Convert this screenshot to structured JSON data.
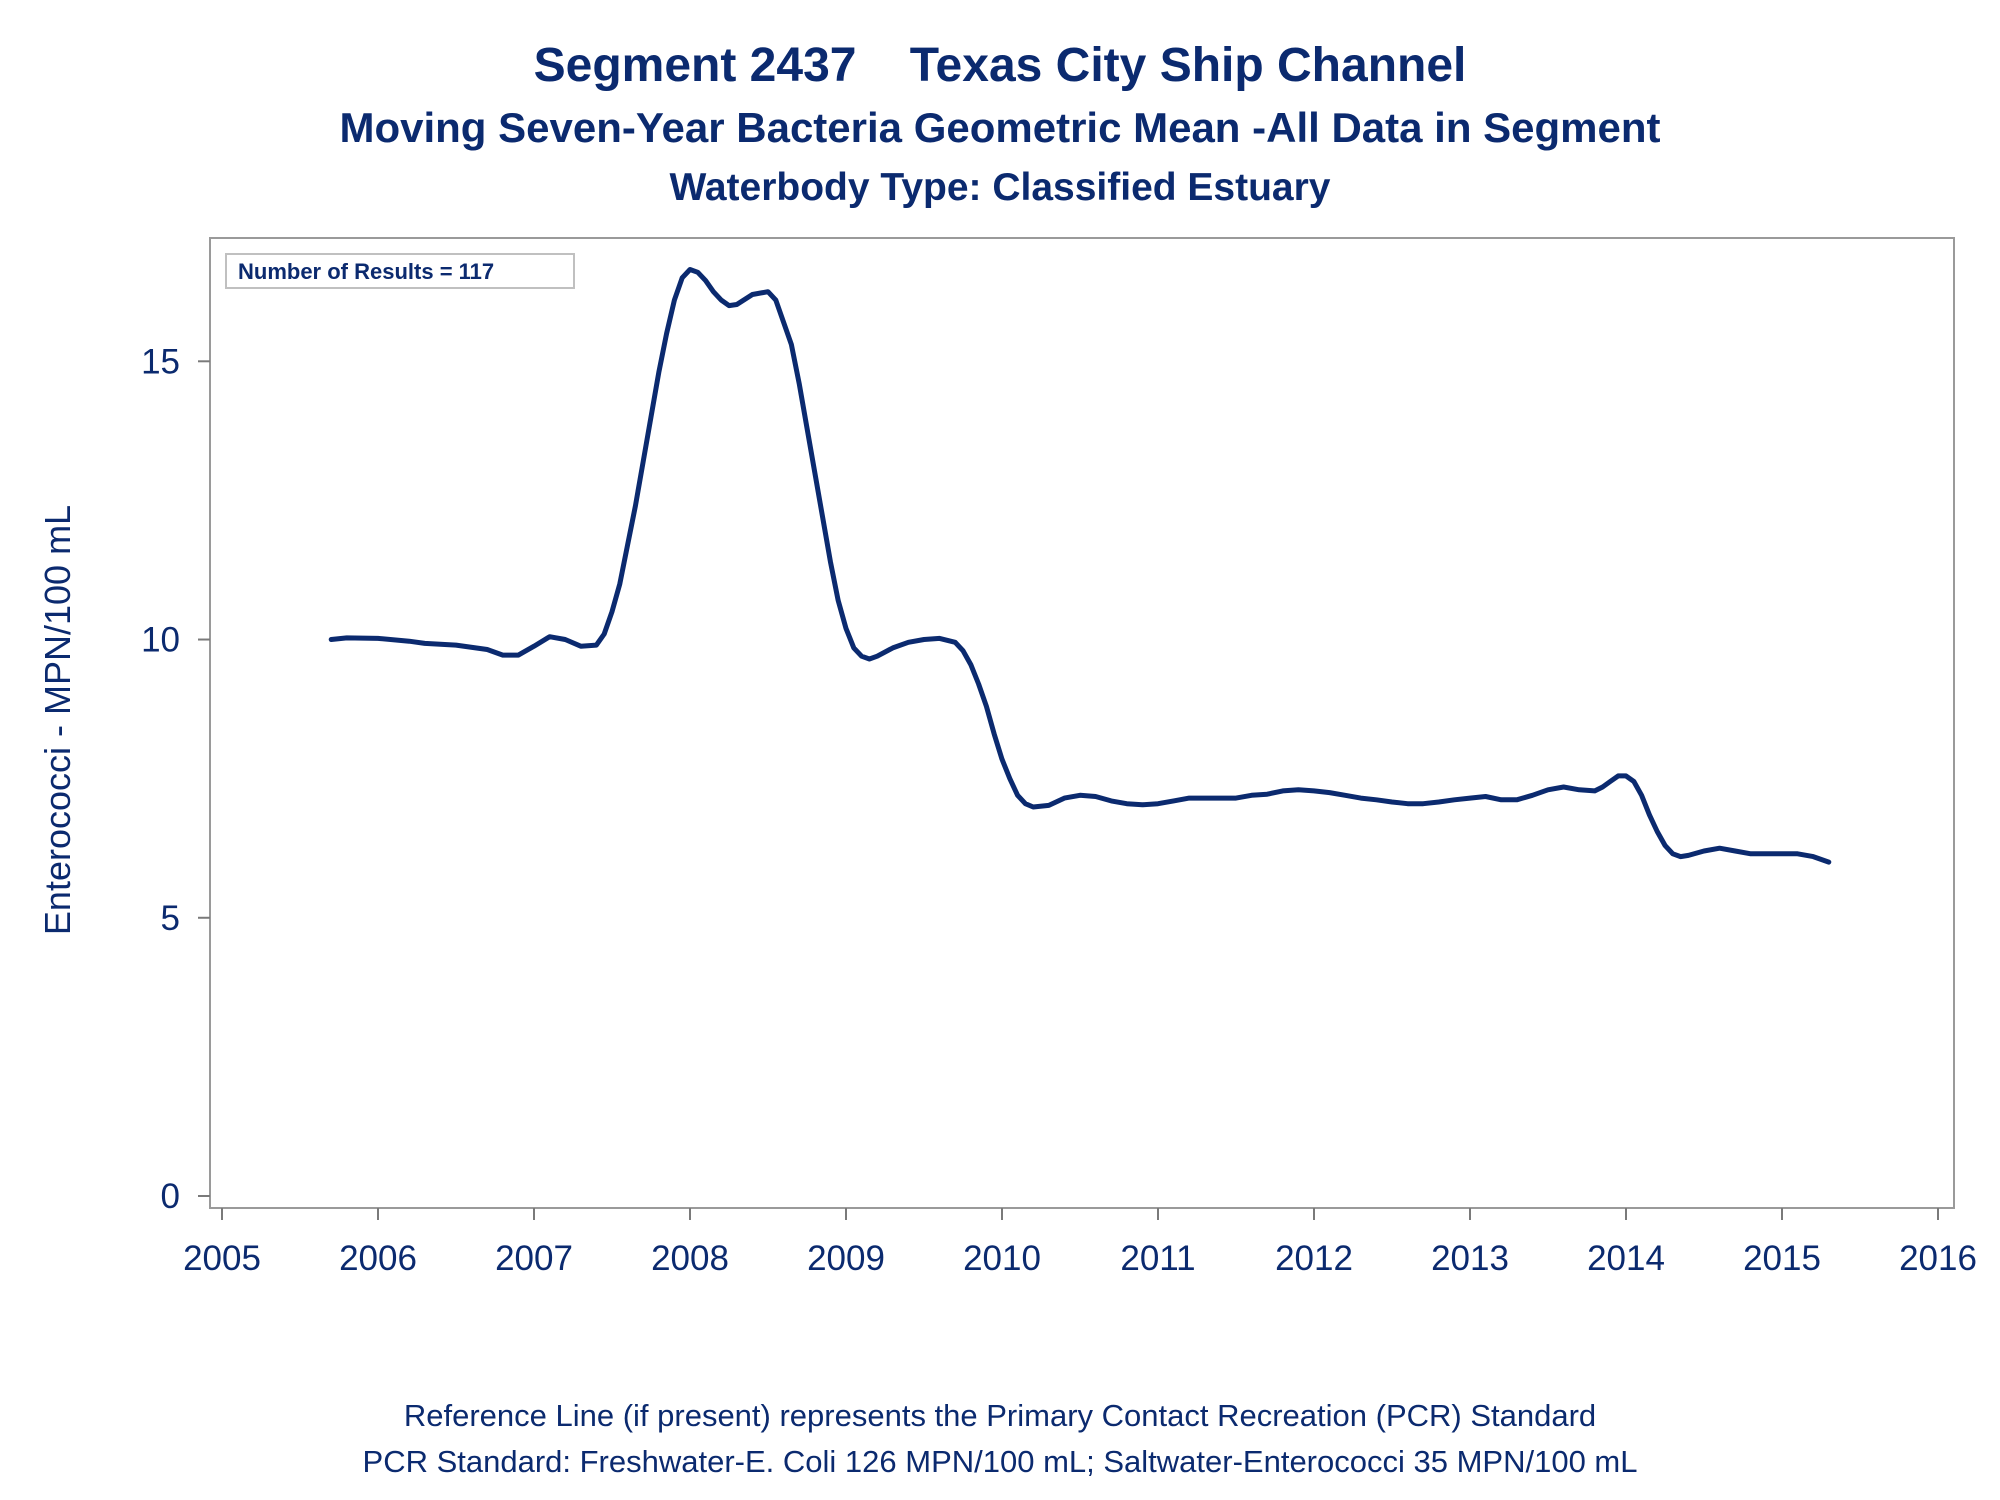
{
  "chart_data": {
    "type": "line",
    "title": "Segment 2437    Texas City Ship Channel",
    "subtitle": "Moving Seven-Year Bacteria Geometric Mean -All Data in Segment",
    "subtitle2": "Waterbody Type: Classified Estuary",
    "xlabel": "",
    "ylabel": "Enterococci - MPN/100 mL",
    "xlim": [
      2005,
      2016
    ],
    "ylim": [
      0,
      17
    ],
    "x_ticks": [
      "2005",
      "2006",
      "2007",
      "2008",
      "2009",
      "2010",
      "2011",
      "2012",
      "2013",
      "2014",
      "2015",
      "2016"
    ],
    "y_ticks": [
      "0",
      "5",
      "10",
      "15"
    ],
    "annotation": "Number of Results = 117",
    "grid": false,
    "footnote1": "Reference Line (if present) represents the Primary Contact Recreation (PCR) Standard",
    "footnote2": "PCR Standard: Freshwater-E. Coli 126 MPN/100 mL; Saltwater-Enterococci 35 MPN/100 mL",
    "series": [
      {
        "color": "#0b2a6f",
        "points": [
          [
            2005.7,
            10.0
          ],
          [
            2005.8,
            10.03
          ],
          [
            2006.0,
            10.02
          ],
          [
            2006.2,
            9.97
          ],
          [
            2006.3,
            9.93
          ],
          [
            2006.5,
            9.9
          ],
          [
            2006.7,
            9.82
          ],
          [
            2006.8,
            9.72
          ],
          [
            2006.9,
            9.72
          ],
          [
            2007.0,
            9.88
          ],
          [
            2007.1,
            10.05
          ],
          [
            2007.2,
            10.0
          ],
          [
            2007.3,
            9.88
          ],
          [
            2007.4,
            9.9
          ],
          [
            2007.45,
            10.1
          ],
          [
            2007.5,
            10.5
          ],
          [
            2007.55,
            11.0
          ],
          [
            2007.6,
            11.7
          ],
          [
            2007.65,
            12.4
          ],
          [
            2007.7,
            13.2
          ],
          [
            2007.75,
            14.0
          ],
          [
            2007.8,
            14.8
          ],
          [
            2007.85,
            15.5
          ],
          [
            2007.9,
            16.1
          ],
          [
            2007.95,
            16.5
          ],
          [
            2008.0,
            16.65
          ],
          [
            2008.05,
            16.6
          ],
          [
            2008.1,
            16.45
          ],
          [
            2008.15,
            16.25
          ],
          [
            2008.2,
            16.1
          ],
          [
            2008.25,
            16.0
          ],
          [
            2008.3,
            16.02
          ],
          [
            2008.4,
            16.2
          ],
          [
            2008.5,
            16.25
          ],
          [
            2008.55,
            16.1
          ],
          [
            2008.6,
            15.7
          ],
          [
            2008.65,
            15.3
          ],
          [
            2008.7,
            14.6
          ],
          [
            2008.75,
            13.8
          ],
          [
            2008.8,
            13.0
          ],
          [
            2008.85,
            12.2
          ],
          [
            2008.9,
            11.4
          ],
          [
            2008.95,
            10.7
          ],
          [
            2009.0,
            10.2
          ],
          [
            2009.05,
            9.85
          ],
          [
            2009.1,
            9.7
          ],
          [
            2009.15,
            9.65
          ],
          [
            2009.2,
            9.7
          ],
          [
            2009.3,
            9.85
          ],
          [
            2009.4,
            9.95
          ],
          [
            2009.5,
            10.0
          ],
          [
            2009.6,
            10.02
          ],
          [
            2009.7,
            9.95
          ],
          [
            2009.75,
            9.8
          ],
          [
            2009.8,
            9.55
          ],
          [
            2009.85,
            9.2
          ],
          [
            2009.9,
            8.8
          ],
          [
            2009.95,
            8.3
          ],
          [
            2010.0,
            7.85
          ],
          [
            2010.05,
            7.5
          ],
          [
            2010.1,
            7.2
          ],
          [
            2010.15,
            7.05
          ],
          [
            2010.2,
            6.99
          ],
          [
            2010.3,
            7.02
          ],
          [
            2010.4,
            7.15
          ],
          [
            2010.5,
            7.2
          ],
          [
            2010.6,
            7.18
          ],
          [
            2010.7,
            7.1
          ],
          [
            2010.8,
            7.05
          ],
          [
            2010.9,
            7.03
          ],
          [
            2011.0,
            7.05
          ],
          [
            2011.1,
            7.1
          ],
          [
            2011.2,
            7.15
          ],
          [
            2011.3,
            7.15
          ],
          [
            2011.5,
            7.15
          ],
          [
            2011.6,
            7.2
          ],
          [
            2011.7,
            7.22
          ],
          [
            2011.8,
            7.28
          ],
          [
            2011.9,
            7.3
          ],
          [
            2012.0,
            7.28
          ],
          [
            2012.1,
            7.25
          ],
          [
            2012.2,
            7.2
          ],
          [
            2012.3,
            7.15
          ],
          [
            2012.4,
            7.12
          ],
          [
            2012.5,
            7.08
          ],
          [
            2012.6,
            7.05
          ],
          [
            2012.7,
            7.05
          ],
          [
            2012.8,
            7.08
          ],
          [
            2012.9,
            7.12
          ],
          [
            2013.0,
            7.15
          ],
          [
            2013.1,
            7.18
          ],
          [
            2013.2,
            7.12
          ],
          [
            2013.3,
            7.12
          ],
          [
            2013.4,
            7.2
          ],
          [
            2013.5,
            7.3
          ],
          [
            2013.6,
            7.35
          ],
          [
            2013.7,
            7.3
          ],
          [
            2013.8,
            7.28
          ],
          [
            2013.85,
            7.35
          ],
          [
            2013.9,
            7.45
          ],
          [
            2013.95,
            7.55
          ],
          [
            2014.0,
            7.55
          ],
          [
            2014.05,
            7.45
          ],
          [
            2014.1,
            7.2
          ],
          [
            2014.15,
            6.85
          ],
          [
            2014.2,
            6.55
          ],
          [
            2014.25,
            6.3
          ],
          [
            2014.3,
            6.15
          ],
          [
            2014.35,
            6.1
          ],
          [
            2014.4,
            6.12
          ],
          [
            2014.5,
            6.2
          ],
          [
            2014.6,
            6.25
          ],
          [
            2014.7,
            6.2
          ],
          [
            2014.8,
            6.15
          ],
          [
            2014.9,
            6.15
          ],
          [
            2015.0,
            6.15
          ],
          [
            2015.1,
            6.15
          ],
          [
            2015.2,
            6.1
          ],
          [
            2015.3,
            6.0
          ]
        ]
      }
    ]
  }
}
